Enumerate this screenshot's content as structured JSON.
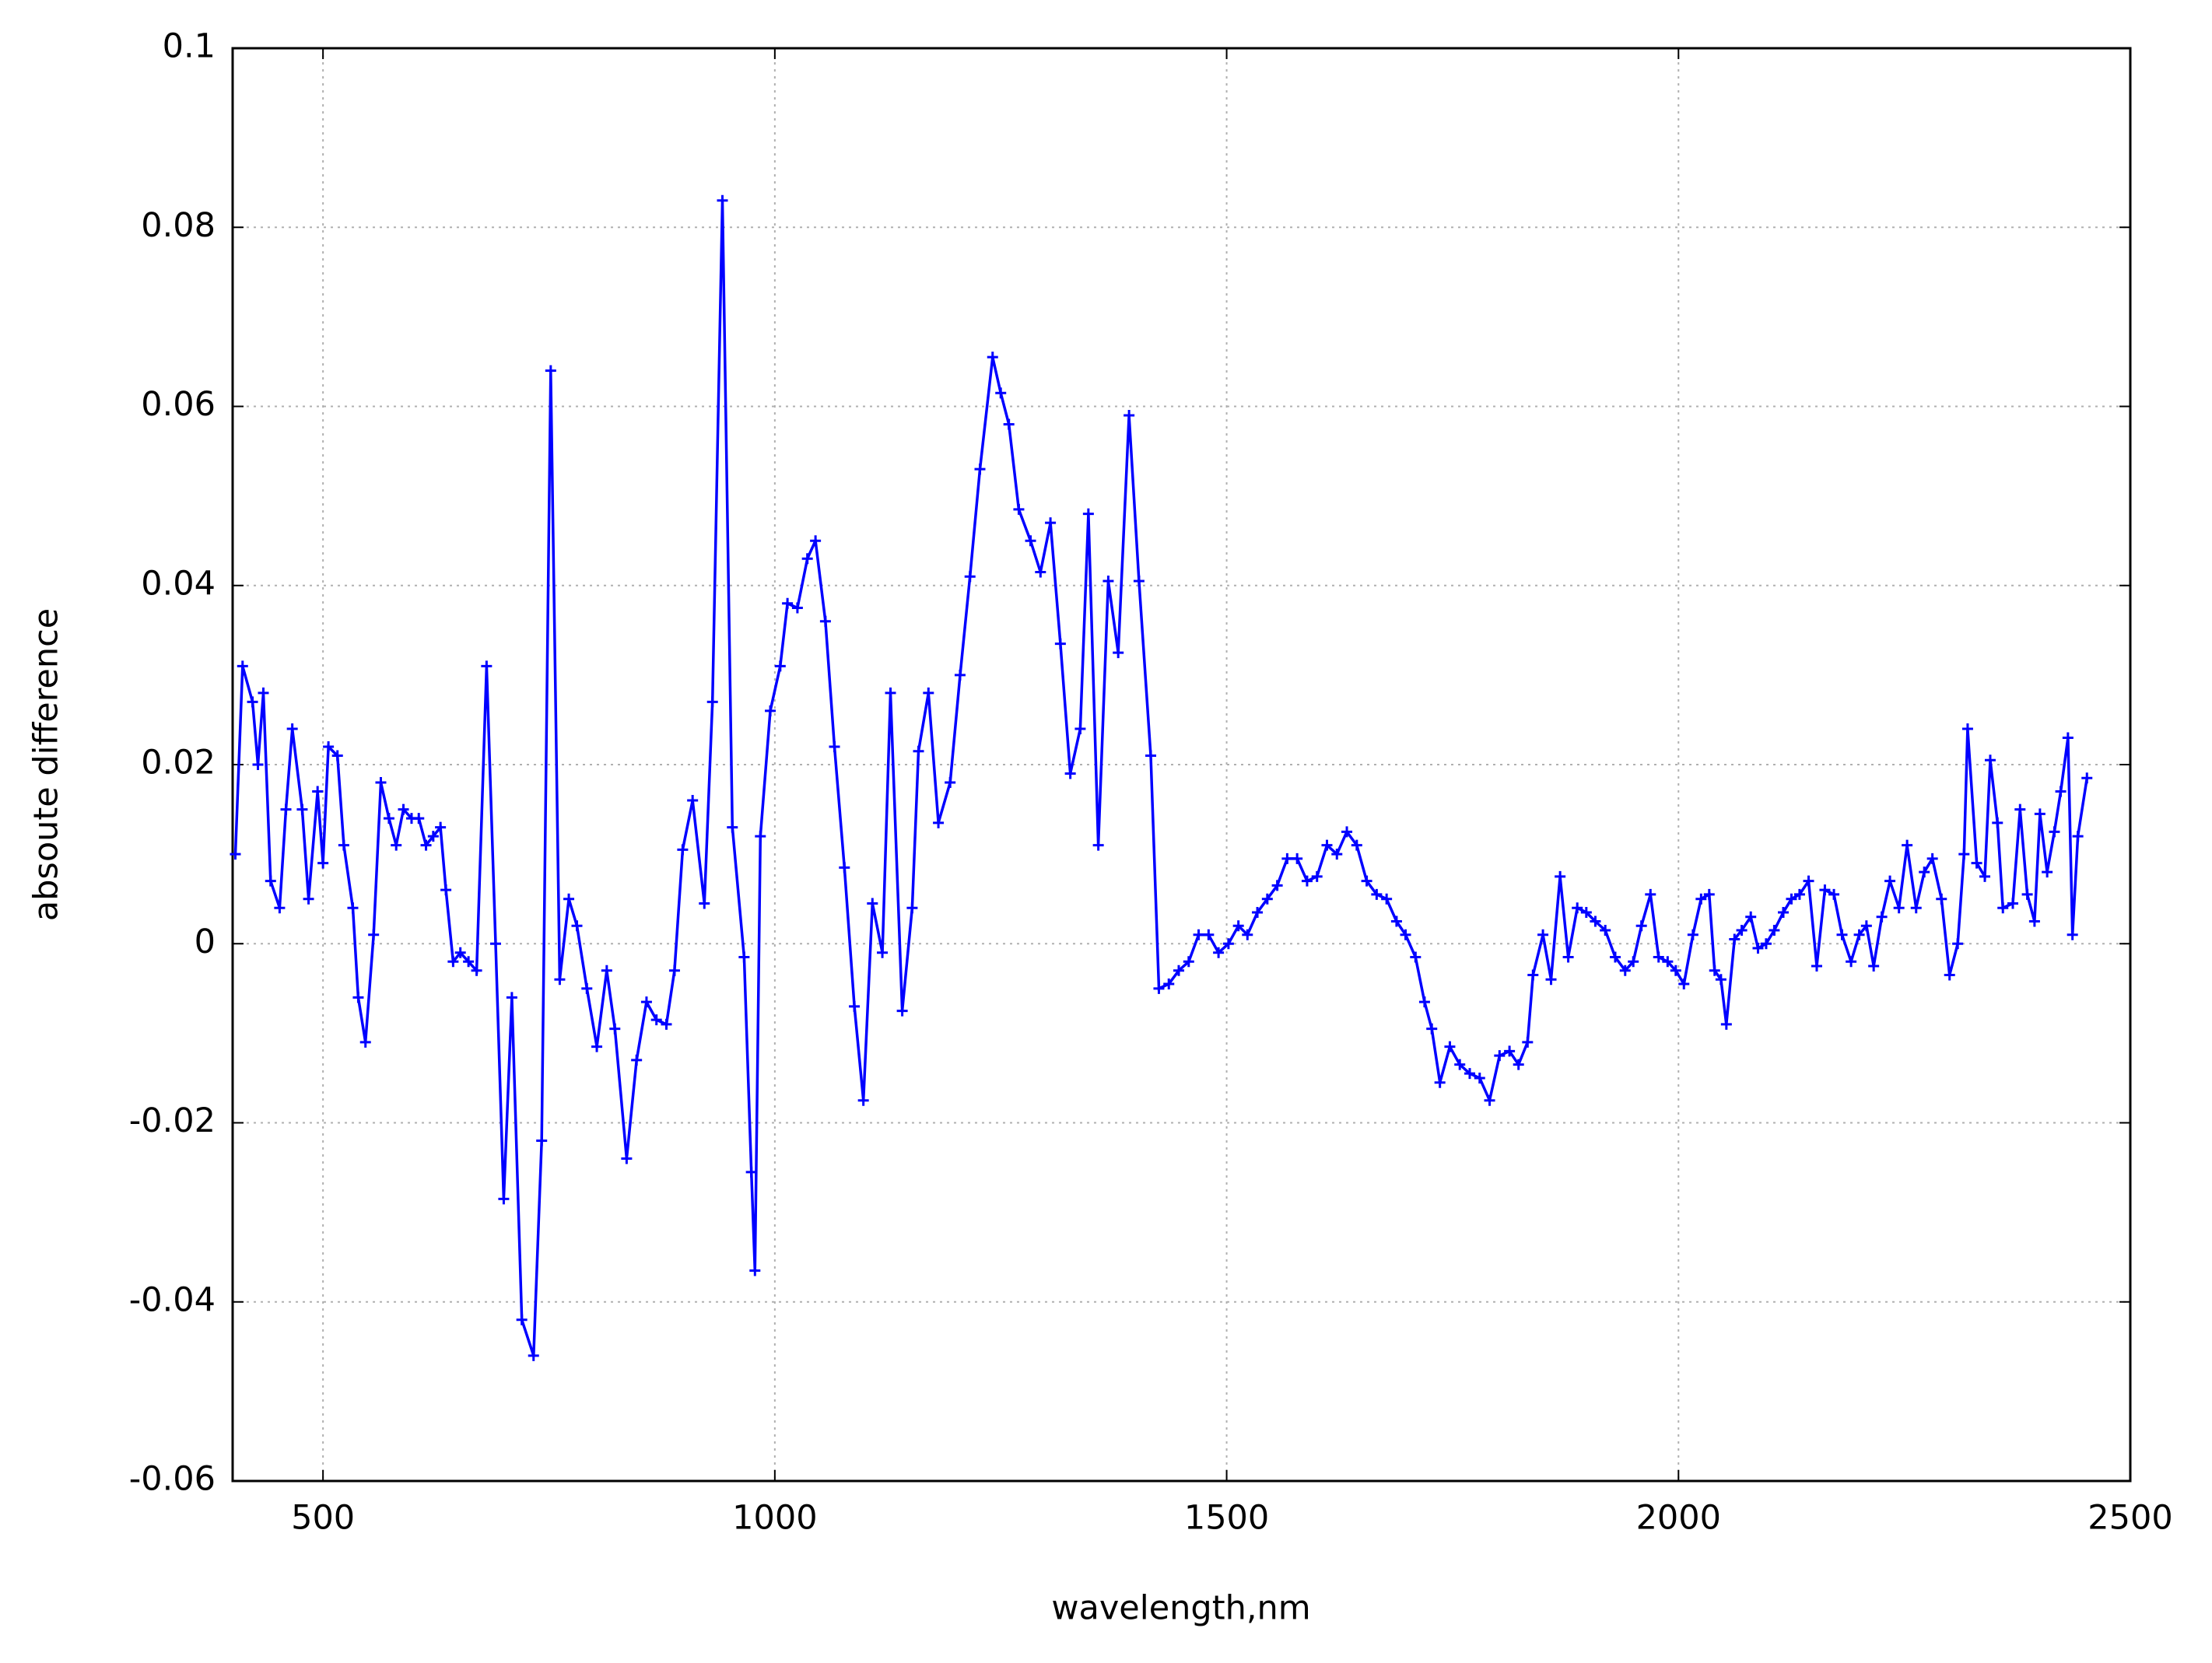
{
  "chart_data": {
    "type": "line",
    "xlabel": "wavelength,nm",
    "ylabel": "absoute difference",
    "color": "#0000ff",
    "grid": true,
    "xlim": [
      400,
      2500
    ],
    "ylim": [
      -0.06,
      0.1
    ],
    "xticks": [
      500,
      1000,
      1500,
      2000,
      2500
    ],
    "yticks": [
      -0.06,
      -0.04,
      -0.02,
      0,
      0.02,
      0.04,
      0.06,
      0.08,
      0.1
    ],
    "x": [
      403,
      411,
      422,
      428,
      434,
      442,
      452,
      459,
      466,
      477,
      484,
      494,
      500,
      506,
      516,
      523,
      533,
      539,
      547,
      556,
      564,
      573,
      581,
      589,
      598,
      606,
      614,
      622,
      630,
      636,
      644,
      652,
      661,
      670,
      681,
      691,
      700,
      709,
      720,
      733,
      742,
      752,
      762,
      772,
      781,
      792,
      803,
      814,
      823,
      836,
      847,
      858,
      869,
      880,
      889,
      898,
      909,
      922,
      931,
      942,
      953,
      966,
      974,
      978,
      984,
      995,
      1006,
      1014,
      1025,
      1036,
      1045,
      1056,
      1066,
      1077,
      1088,
      1098,
      1108,
      1119,
      1128,
      1141,
      1152,
      1159,
      1170,
      1181,
      1194,
      1205,
      1216,
      1227,
      1241,
      1250,
      1259,
      1270,
      1283,
      1294,
      1305,
      1316,
      1327,
      1338,
      1347,
      1358,
      1369,
      1380,
      1392,
      1403,
      1416,
      1425,
      1436,
      1447,
      1458,
      1469,
      1480,
      1491,
      1502,
      1513,
      1523,
      1534,
      1545,
      1556,
      1567,
      1578,
      1589,
      1600,
      1611,
      1622,
      1633,
      1644,
      1655,
      1666,
      1677,
      1688,
      1698,
      1709,
      1719,
      1727,
      1736,
      1747,
      1758,
      1769,
      1780,
      1791,
      1802,
      1813,
      1823,
      1833,
      1839,
      1850,
      1859,
      1869,
      1878,
      1888,
      1898,
      1908,
      1919,
      1930,
      1941,
      1950,
      1959,
      1969,
      1978,
      1988,
      1997,
      2006,
      2016,
      2025,
      2034,
      2040,
      2047,
      2053,
      2062,
      2070,
      2080,
      2088,
      2097,
      2106,
      2116,
      2125,
      2134,
      2144,
      2153,
      2162,
      2172,
      2181,
      2191,
      2200,
      2208,
      2216,
      2225,
      2234,
      2244,
      2253,
      2263,
      2272,
      2281,
      2291,
      2300,
      2309,
      2316,
      2320,
      2330,
      2339,
      2345,
      2353,
      2359,
      2370,
      2378,
      2386,
      2394,
      2400,
      2408,
      2416,
      2423,
      2431,
      2436,
      2442,
      2452
    ],
    "values": [
      0.01,
      0.031,
      0.027,
      0.02,
      0.028,
      0.007,
      0.004,
      0.015,
      0.024,
      0.015,
      0.005,
      0.017,
      0.009,
      0.022,
      0.021,
      0.011,
      0.004,
      -0.006,
      -0.011,
      0.001,
      0.018,
      0.014,
      0.011,
      0.015,
      0.014,
      0.014,
      0.011,
      0.012,
      0.013,
      0.006,
      -0.002,
      -0.001,
      -0.002,
      -0.003,
      0.031,
      0.0,
      -0.0285,
      -0.006,
      -0.042,
      -0.046,
      -0.022,
      0.064,
      -0.004,
      0.005,
      0.002,
      -0.005,
      -0.0115,
      -0.003,
      -0.0095,
      -0.024,
      -0.013,
      -0.0065,
      -0.0085,
      -0.009,
      -0.003,
      0.0105,
      0.016,
      0.0045,
      0.027,
      0.083,
      0.013,
      -0.0015,
      -0.0255,
      -0.0365,
      0.012,
      0.026,
      0.031,
      0.038,
      0.0375,
      0.043,
      0.045,
      0.036,
      0.022,
      0.0085,
      -0.007,
      -0.0175,
      0.0045,
      -0.001,
      0.028,
      -0.0075,
      0.004,
      0.0215,
      0.028,
      0.0135,
      0.018,
      0.03,
      0.041,
      0.053,
      0.0655,
      0.0615,
      0.058,
      0.0485,
      0.045,
      0.0415,
      0.047,
      0.0335,
      0.019,
      0.024,
      0.048,
      0.011,
      0.0405,
      0.0325,
      0.059,
      0.0405,
      0.021,
      -0.005,
      -0.0045,
      -0.003,
      -0.002,
      0.001,
      0.001,
      -0.001,
      0.0,
      0.002,
      0.001,
      0.0035,
      0.005,
      0.0065,
      0.0095,
      0.0095,
      0.007,
      0.0075,
      0.011,
      0.01,
      0.0125,
      0.011,
      0.007,
      0.0055,
      0.005,
      0.0025,
      0.001,
      -0.0015,
      -0.0065,
      -0.0095,
      -0.0155,
      -0.0115,
      -0.0135,
      -0.0145,
      -0.015,
      -0.0175,
      -0.0125,
      -0.012,
      -0.0135,
      -0.011,
      -0.0035,
      0.001,
      -0.004,
      0.0075,
      -0.0015,
      0.004,
      0.0035,
      0.0025,
      0.0015,
      -0.0015,
      -0.003,
      -0.002,
      0.002,
      0.0055,
      -0.0015,
      -0.002,
      -0.003,
      -0.0045,
      0.001,
      0.005,
      0.0055,
      -0.003,
      -0.004,
      -0.009,
      0.0005,
      0.0015,
      0.003,
      -0.0005,
      0.0,
      0.0015,
      0.0035,
      0.005,
      0.0055,
      0.007,
      -0.0025,
      0.006,
      0.0055,
      0.001,
      -0.002,
      0.001,
      0.002,
      -0.0025,
      0.003,
      0.007,
      0.004,
      0.011,
      0.004,
      0.008,
      0.0095,
      0.005,
      -0.0035,
      0.0,
      0.01,
      0.024,
      0.009,
      0.0075,
      0.0205,
      0.0135,
      0.004,
      0.0045,
      0.015,
      0.0055,
      0.0025,
      0.0145,
      0.008,
      0.0125,
      0.017,
      0.023,
      0.001,
      0.012,
      0.0185
    ]
  }
}
